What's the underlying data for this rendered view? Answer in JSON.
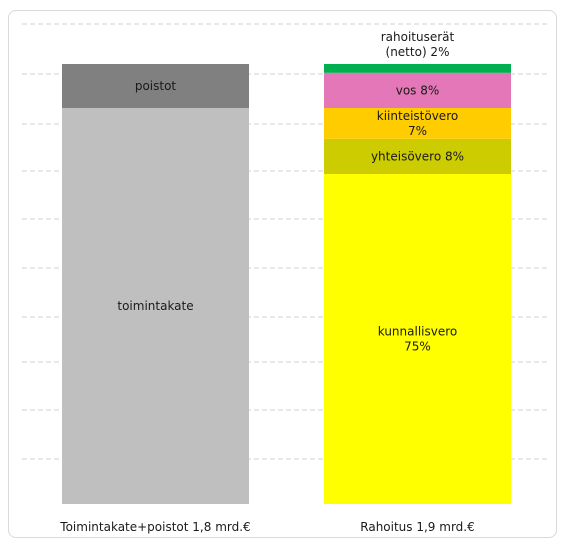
{
  "chart_data": {
    "type": "bar",
    "stacked": true,
    "grid": true,
    "legend": "none",
    "categories": [
      "Toimintakate+poistot 1,8 mrd.€",
      "Rahoitus 1,9 mrd.€"
    ],
    "bars": [
      {
        "category": "Toimintakate+poistot 1,8 mrd.€",
        "segments": [
          {
            "label": "toimintakate",
            "lines": [
              "toimintakate"
            ],
            "value": 90,
            "color": "#bfbfbf"
          },
          {
            "label": "poistot",
            "lines": [
              "poistot"
            ],
            "value": 10,
            "color": "#808080"
          }
        ]
      },
      {
        "category": "Rahoitus 1,9 mrd.€",
        "segments": [
          {
            "label": "kunnallisvero 75%",
            "lines": [
              "kunnallisvero",
              "75%"
            ],
            "value": 75,
            "color": "#ffff00"
          },
          {
            "label": "yhteisövero 8%",
            "lines": [
              "yhteisövero 8%"
            ],
            "value": 8,
            "color": "#cccc00"
          },
          {
            "label": "kiinteistövero 7%",
            "lines": [
              "kiinteistövero",
              "7%"
            ],
            "value": 7,
            "color": "#ffcc00"
          },
          {
            "label": "vos 8%",
            "lines": [
              "vos 8%"
            ],
            "value": 8,
            "color": "#e377b8"
          },
          {
            "label": "rahoituserät (netto) 2%",
            "lines": [
              "rahoituserät",
              "(netto) 2%"
            ],
            "value": 2,
            "color": "#00b050",
            "label_outside": true
          }
        ]
      }
    ]
  }
}
